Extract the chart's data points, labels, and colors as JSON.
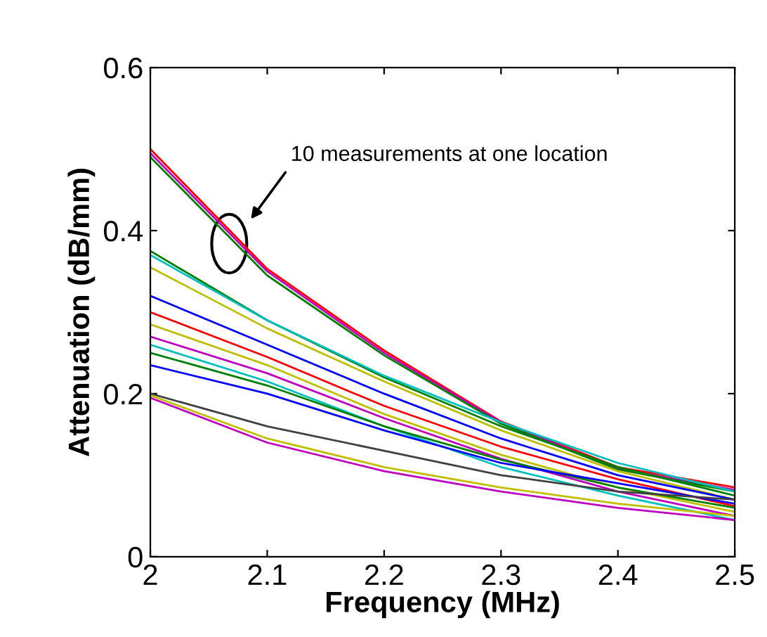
{
  "chart_data": {
    "type": "line",
    "xlabel": "Frequency (MHz)",
    "ylabel": "Attenuation (dB/mm)",
    "x": [
      2.0,
      2.1,
      2.2,
      2.3,
      2.4,
      2.5
    ],
    "xlim": [
      2,
      2.5
    ],
    "xticks": [
      2,
      2.1,
      2.2,
      2.3,
      2.4,
      2.5
    ],
    "ylim": [
      0,
      0.6
    ],
    "yticks": [
      0,
      0.2,
      0.4,
      0.6
    ],
    "grid": false,
    "marker": "none",
    "line_style": "solid",
    "annotations": [
      "10 measurements at one location"
    ],
    "series": [
      {
        "color": "#ff0000",
        "values": [
          0.5,
          0.353,
          0.253,
          0.166,
          0.11,
          0.085
        ]
      },
      {
        "color": "#bf00bf",
        "values": [
          0.495,
          0.35,
          0.25,
          0.165,
          0.108,
          0.082
        ]
      },
      {
        "color": "#008000",
        "values": [
          0.49,
          0.345,
          0.247,
          0.163,
          0.107,
          0.08
        ]
      },
      {
        "color": "#008000",
        "values": [
          0.375,
          0.29,
          0.22,
          0.16,
          0.11,
          0.075
        ]
      },
      {
        "color": "#00bfbf",
        "values": [
          0.37,
          0.29,
          0.222,
          0.165,
          0.115,
          0.08
        ]
      },
      {
        "color": "#bfbf00",
        "values": [
          0.355,
          0.28,
          0.215,
          0.155,
          0.105,
          0.07
        ]
      },
      {
        "color": "#0000ff",
        "values": [
          0.32,
          0.26,
          0.2,
          0.145,
          0.1,
          0.07
        ]
      },
      {
        "color": "#ff0000",
        "values": [
          0.3,
          0.245,
          0.185,
          0.135,
          0.095,
          0.062
        ]
      },
      {
        "color": "#bfbf00",
        "values": [
          0.285,
          0.235,
          0.175,
          0.125,
          0.085,
          0.055
        ]
      },
      {
        "color": "#bf00bf",
        "values": [
          0.27,
          0.225,
          0.17,
          0.12,
          0.08,
          0.05
        ]
      },
      {
        "color": "#00bfbf",
        "values": [
          0.26,
          0.215,
          0.16,
          0.11,
          0.075,
          0.045
        ]
      },
      {
        "color": "#008000",
        "values": [
          0.25,
          0.21,
          0.16,
          0.119,
          0.085,
          0.06
        ]
      },
      {
        "color": "#0000ff",
        "values": [
          0.235,
          0.2,
          0.155,
          0.115,
          0.09,
          0.065
        ]
      },
      {
        "color": "#404040",
        "values": [
          0.2,
          0.16,
          0.13,
          0.1,
          0.08,
          0.07
        ]
      },
      {
        "color": "#bfbf00",
        "values": [
          0.198,
          0.145,
          0.11,
          0.085,
          0.065,
          0.05
        ]
      },
      {
        "color": "#bf00bf",
        "values": [
          0.195,
          0.14,
          0.105,
          0.08,
          0.06,
          0.045
        ]
      }
    ]
  }
}
